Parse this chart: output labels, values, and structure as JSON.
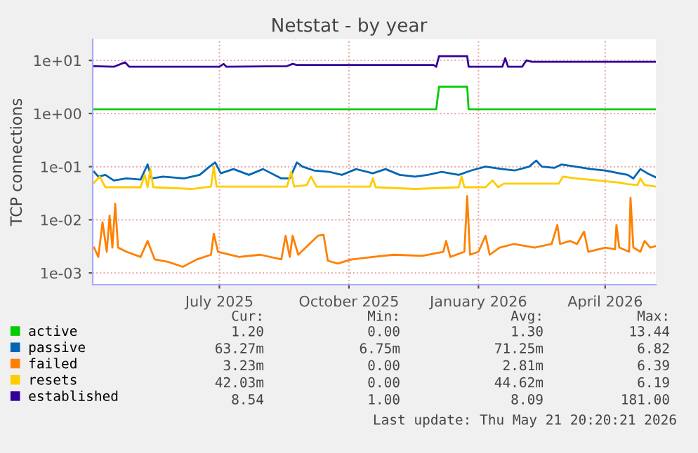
{
  "chart_data": {
    "type": "line",
    "title": "Netstat - by year",
    "ylabel": "TCP connections",
    "log": "y",
    "grid": true,
    "legend": "bottom left",
    "marker": "none",
    "line_style": "solid",
    "xlim": [
      "2025-04-16",
      "2026-05-21"
    ],
    "xticks": [
      {
        "value": "2025-07-15",
        "label": "July 2025"
      },
      {
        "value": "2025-10-15",
        "label": "October 2025"
      },
      {
        "value": "2026-01-15",
        "label": "January 2026"
      },
      {
        "value": "2026-04-15",
        "label": "April 2026"
      }
    ],
    "ylim": [
      0.0006,
      25
    ],
    "yticks": [
      {
        "value": 0.001,
        "label": "1e-03"
      },
      {
        "value": 0.01,
        "label": "1e-02"
      },
      {
        "value": 0.1,
        "label": "1e-01"
      },
      {
        "value": 1,
        "label": "1e+00"
      },
      {
        "value": 10,
        "label": "1e+01"
      }
    ],
    "series": [
      {
        "name": "active",
        "color": "#00cc00",
        "x": [
          "2025-04-16",
          "2025-12-16",
          "2025-12-18",
          "2026-01-07",
          "2026-01-08",
          "2026-05-21"
        ],
        "values": [
          1.2,
          1.2,
          3.2,
          3.2,
          1.2,
          1.2
        ]
      },
      {
        "name": "passive",
        "color": "#0066b3",
        "x": [
          "2025-04-17",
          "2025-04-20",
          "2025-04-25",
          "2025-05-01",
          "2025-05-10",
          "2025-05-20",
          "2025-05-25",
          "2025-05-28",
          "2025-06-05",
          "2025-06-20",
          "2025-07-01",
          "2025-07-08",
          "2025-07-12",
          "2025-07-16",
          "2025-07-25",
          "2025-08-05",
          "2025-08-15",
          "2025-08-28",
          "2025-09-03",
          "2025-09-08",
          "2025-09-12",
          "2025-09-20",
          "2025-10-01",
          "2025-10-10",
          "2025-10-20",
          "2025-11-01",
          "2025-11-10",
          "2025-11-20",
          "2025-12-01",
          "2025-12-10",
          "2025-12-20",
          "2026-01-01",
          "2026-01-10",
          "2026-01-20",
          "2026-02-01",
          "2026-02-10",
          "2026-02-20",
          "2026-02-25",
          "2026-03-01",
          "2026-03-10",
          "2026-03-15",
          "2026-03-25",
          "2026-04-05",
          "2026-04-15",
          "2026-04-25",
          "2026-05-01",
          "2026-05-05",
          "2026-05-10",
          "2026-05-15",
          "2026-05-21"
        ],
        "values": [
          0.08,
          0.065,
          0.07,
          0.055,
          0.06,
          0.057,
          0.11,
          0.06,
          0.065,
          0.06,
          0.07,
          0.1,
          0.12,
          0.075,
          0.09,
          0.07,
          0.09,
          0.06,
          0.06,
          0.12,
          0.1,
          0.085,
          0.08,
          0.07,
          0.09,
          0.075,
          0.09,
          0.07,
          0.065,
          0.07,
          0.08,
          0.07,
          0.085,
          0.1,
          0.09,
          0.085,
          0.1,
          0.13,
          0.1,
          0.095,
          0.11,
          0.1,
          0.09,
          0.085,
          0.075,
          0.07,
          0.06,
          0.09,
          0.075,
          0.063
        ]
      },
      {
        "name": "failed",
        "color": "#ff8000",
        "x": [
          "2025-04-17",
          "2025-04-20",
          "2025-04-23",
          "2025-04-26",
          "2025-04-28",
          "2025-04-30",
          "2025-05-02",
          "2025-05-04",
          "2025-05-10",
          "2025-05-20",
          "2025-05-25",
          "2025-05-30",
          "2025-06-09",
          "2025-06-19",
          "2025-06-29",
          "2025-07-09",
          "2025-07-11",
          "2025-07-14",
          "2025-07-29",
          "2025-08-13",
          "2025-08-28",
          "2025-08-31",
          "2025-09-03",
          "2025-09-05",
          "2025-09-09",
          "2025-09-23",
          "2025-09-27",
          "2025-09-30",
          "2025-10-07",
          "2025-10-17",
          "2025-11-01",
          "2025-11-16",
          "2025-12-06",
          "2025-12-21",
          "2025-12-23",
          "2025-12-26",
          "2026-01-05",
          "2026-01-07",
          "2026-01-09",
          "2026-01-15",
          "2026-01-20",
          "2026-01-23",
          "2026-01-30",
          "2026-02-09",
          "2026-02-24",
          "2026-03-08",
          "2026-03-12",
          "2026-03-14",
          "2026-03-21",
          "2026-03-26",
          "2026-03-31",
          "2026-04-03",
          "2026-04-15",
          "2026-04-22",
          "2026-04-23",
          "2026-04-25",
          "2026-05-02",
          "2026-05-03",
          "2026-05-05",
          "2026-05-10",
          "2026-05-13",
          "2026-05-17",
          "2026-05-21"
        ],
        "values": [
          0.003,
          0.002,
          0.009,
          0.0025,
          0.012,
          0.003,
          0.02,
          0.003,
          0.0025,
          0.002,
          0.004,
          0.0018,
          0.0016,
          0.0013,
          0.0018,
          0.0022,
          0.0055,
          0.0025,
          0.002,
          0.0022,
          0.0018,
          0.005,
          0.002,
          0.005,
          0.0022,
          0.005,
          0.0052,
          0.0017,
          0.0015,
          0.0018,
          0.002,
          0.0022,
          0.0021,
          0.0025,
          0.004,
          0.002,
          0.0025,
          0.028,
          0.0022,
          0.0025,
          0.005,
          0.0022,
          0.003,
          0.0035,
          0.003,
          0.0035,
          0.008,
          0.0035,
          0.004,
          0.0035,
          0.006,
          0.0025,
          0.003,
          0.0028,
          0.008,
          0.003,
          0.0025,
          0.026,
          0.003,
          0.0025,
          0.004,
          0.003,
          0.0032
        ]
      },
      {
        "name": "resets",
        "color": "#ffcc00",
        "x": [
          "2025-04-17",
          "2025-04-21",
          "2025-04-25",
          "2025-05-20",
          "2025-05-23",
          "2025-05-25",
          "2025-05-27",
          "2025-05-29",
          "2025-06-25",
          "2025-07-09",
          "2025-07-11",
          "2025-07-13",
          "2025-09-01",
          "2025-09-04",
          "2025-09-06",
          "2025-09-15",
          "2025-09-18",
          "2025-09-22",
          "2025-10-30",
          "2025-11-01",
          "2025-11-03",
          "2025-12-01",
          "2026-01-01",
          "2026-01-03",
          "2026-01-05",
          "2026-01-20",
          "2026-01-25",
          "2026-01-29",
          "2026-02-02",
          "2026-03-13",
          "2026-03-16",
          "2026-03-25",
          "2026-04-10",
          "2026-04-25",
          "2026-05-01",
          "2026-05-08",
          "2026-05-10",
          "2026-05-13",
          "2026-05-21"
        ],
        "values": [
          0.05,
          0.065,
          0.041,
          0.041,
          0.07,
          0.041,
          0.09,
          0.041,
          0.038,
          0.042,
          0.1,
          0.042,
          0.042,
          0.08,
          0.042,
          0.045,
          0.065,
          0.042,
          0.042,
          0.06,
          0.041,
          0.038,
          0.041,
          0.065,
          0.041,
          0.041,
          0.055,
          0.041,
          0.048,
          0.048,
          0.065,
          0.06,
          0.055,
          0.05,
          0.047,
          0.045,
          0.06,
          0.045,
          0.042
        ]
      },
      {
        "name": "established",
        "color": "#330099",
        "x": [
          "2025-04-16",
          "2025-05-01",
          "2025-05-09",
          "2025-05-12",
          "2025-07-15",
          "2025-07-18",
          "2025-07-20",
          "2025-09-01",
          "2025-09-05",
          "2025-09-08",
          "2025-12-14",
          "2025-12-16",
          "2025-12-18",
          "2026-01-07",
          "2026-01-08",
          "2026-02-01",
          "2026-02-03",
          "2026-02-05",
          "2026-02-15",
          "2026-02-18",
          "2026-02-22",
          "2026-05-21"
        ],
        "values": [
          7.8,
          7.6,
          9.2,
          7.6,
          7.6,
          8.6,
          7.6,
          7.8,
          8.6,
          8.2,
          8.2,
          7.6,
          12,
          12,
          7.6,
          7.6,
          11,
          7.6,
          7.6,
          10,
          9.4,
          9.4
        ]
      }
    ],
    "annotations": [
      "Cur:",
      "Min:",
      "Avg:",
      "Max:",
      "1.20",
      "0.00",
      "1.30",
      "13.44",
      "63.27m",
      "6.75m",
      "71.25m",
      "6.82",
      "3.23m",
      "0.00",
      "2.81m",
      "6.39",
      "42.03m",
      "0.00",
      "44.62m",
      "6.19",
      "8.54",
      "1.00",
      "8.09",
      "181.00",
      "Last update: Thu May 21 20:20:21 2026"
    ]
  }
}
